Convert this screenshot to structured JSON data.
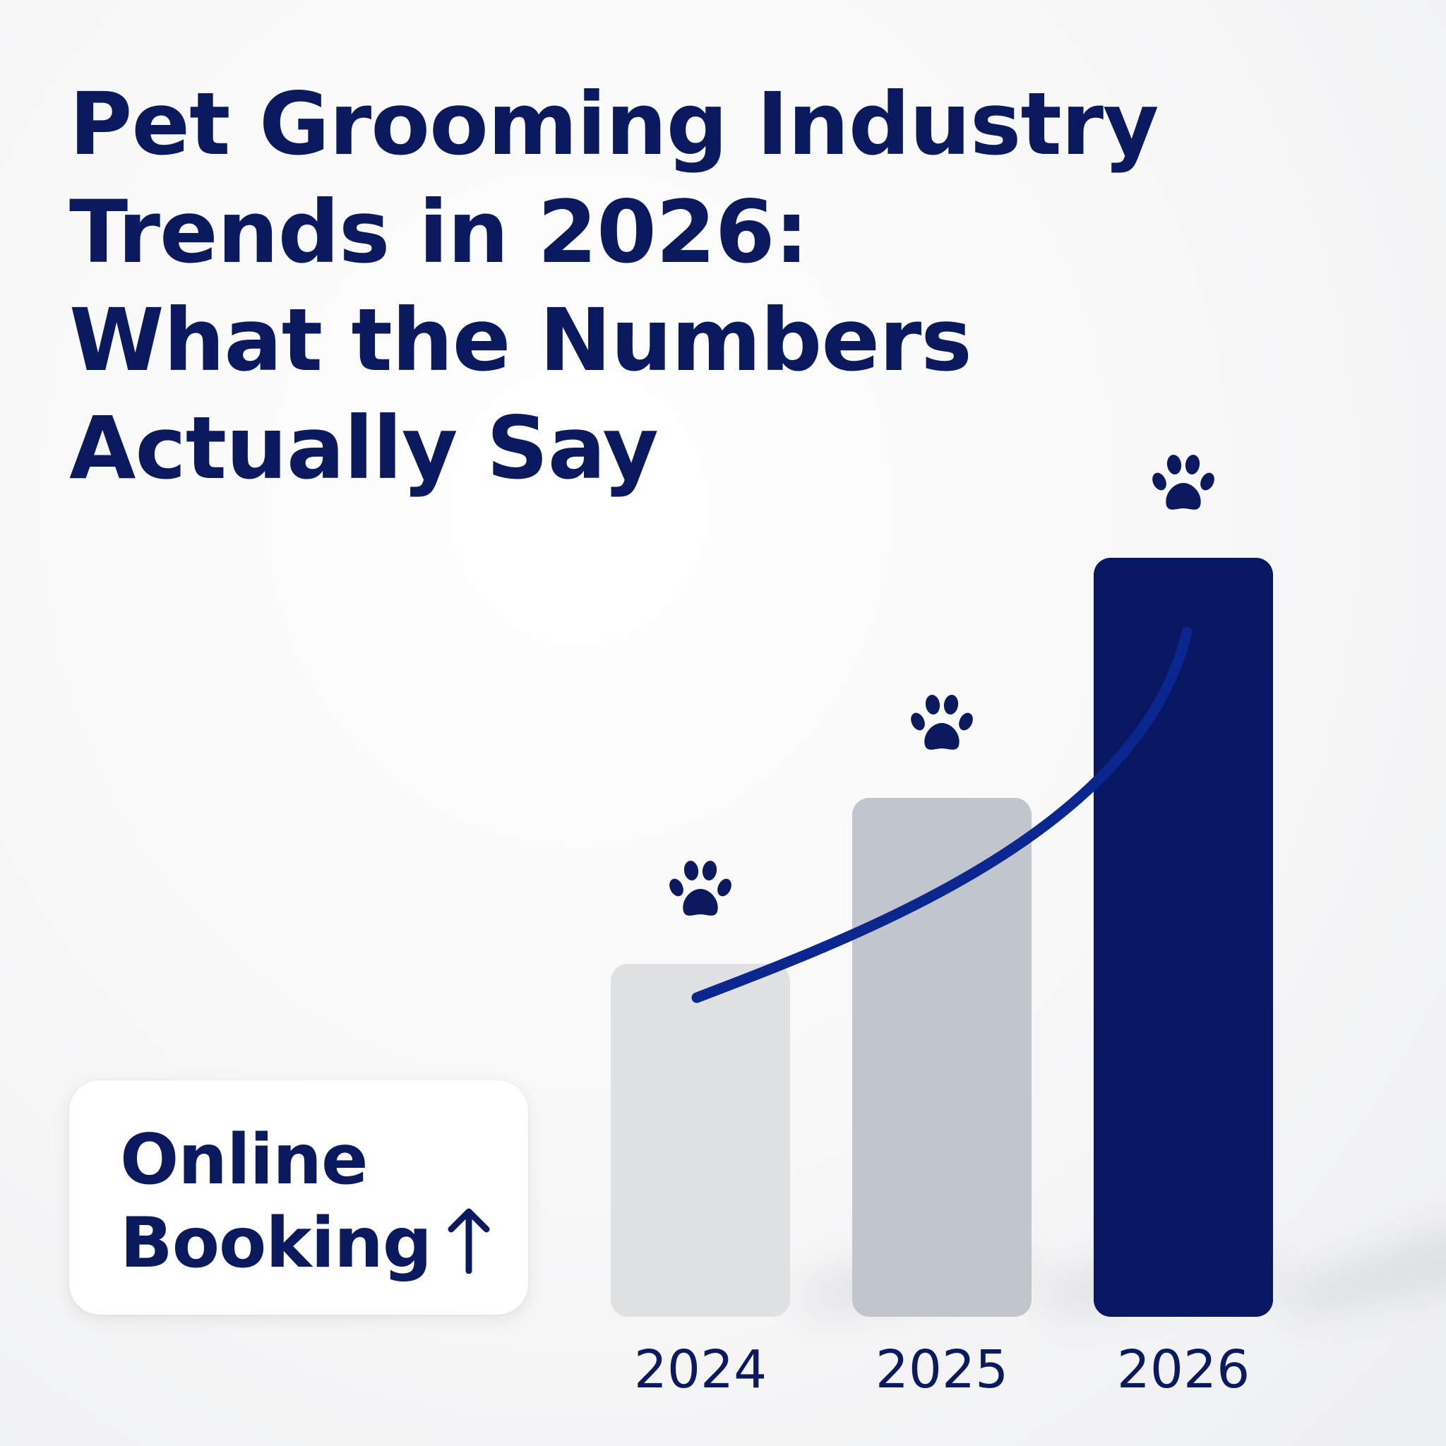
{
  "title_lines": [
    "Pet Grooming Industry",
    "Trends in 2026:",
    "What the Numbers",
    "Actually Say"
  ],
  "callout": {
    "line1": "Online",
    "line2": "Booking",
    "icon": "arrow-up-icon"
  },
  "colors": {
    "title": "#0b1a5e",
    "bar_light": "#dfe1e5",
    "bar_mid": "#c1c5cc",
    "bar_dark": "#071762",
    "trend_line": "#0c2690",
    "paw": "#0b1a5e"
  },
  "chart_data": {
    "type": "bar",
    "categories": [
      "2024",
      "2025",
      "2026"
    ],
    "values": [
      1.0,
      1.47,
      2.15
    ],
    "trend_line": true,
    "marker_icon": "paw-icon",
    "title": "",
    "xlabel": "",
    "ylabel": "",
    "grid": false
  }
}
